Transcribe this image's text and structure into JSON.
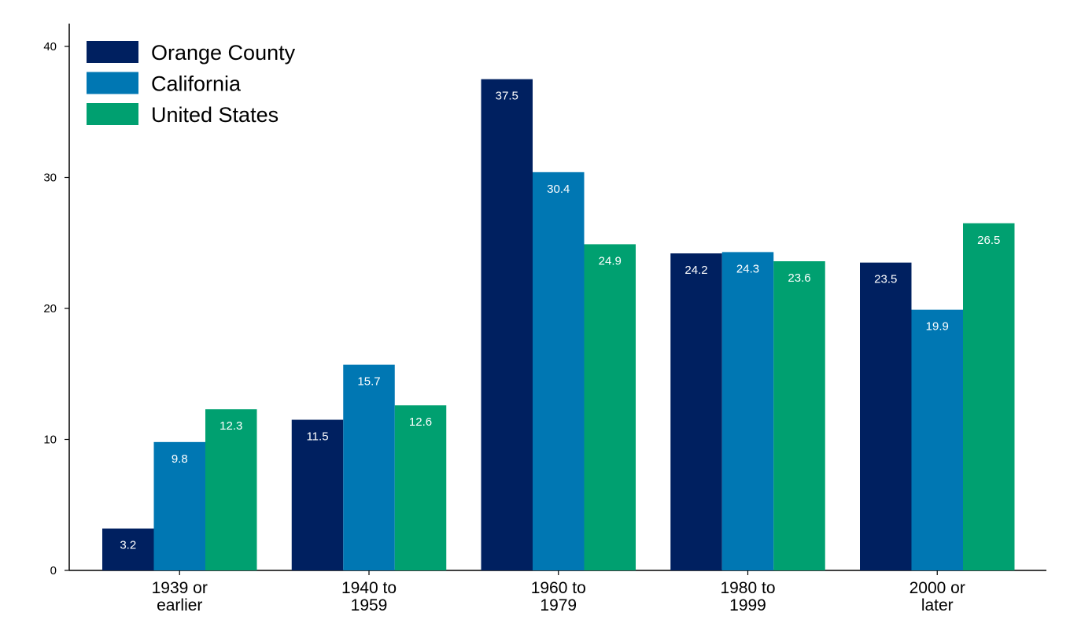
{
  "chart_data": {
    "type": "bar",
    "title": "",
    "xlabel": "",
    "ylabel": "",
    "categories": [
      [
        "1939 or",
        "earlier"
      ],
      [
        "1940 to",
        "1959"
      ],
      [
        "1960 to",
        "1979"
      ],
      [
        "1980 to",
        "1999"
      ],
      [
        "2000 or",
        "later"
      ]
    ],
    "series": [
      {
        "name": "Orange County",
        "color": "#002060",
        "values": [
          3.2,
          11.5,
          37.5,
          24.2,
          23.5
        ]
      },
      {
        "name": "California",
        "color": "#0077b3",
        "values": [
          9.8,
          15.7,
          30.4,
          24.3,
          19.9
        ]
      },
      {
        "name": "United States",
        "color": "#00a070",
        "values": [
          12.3,
          12.6,
          24.9,
          23.6,
          26.5
        ]
      }
    ],
    "ylim": [
      0,
      40
    ],
    "yticks": [
      "0",
      "10",
      "20",
      "30",
      "40"
    ],
    "grid": false,
    "legend": "top-left",
    "data_labels": true
  }
}
